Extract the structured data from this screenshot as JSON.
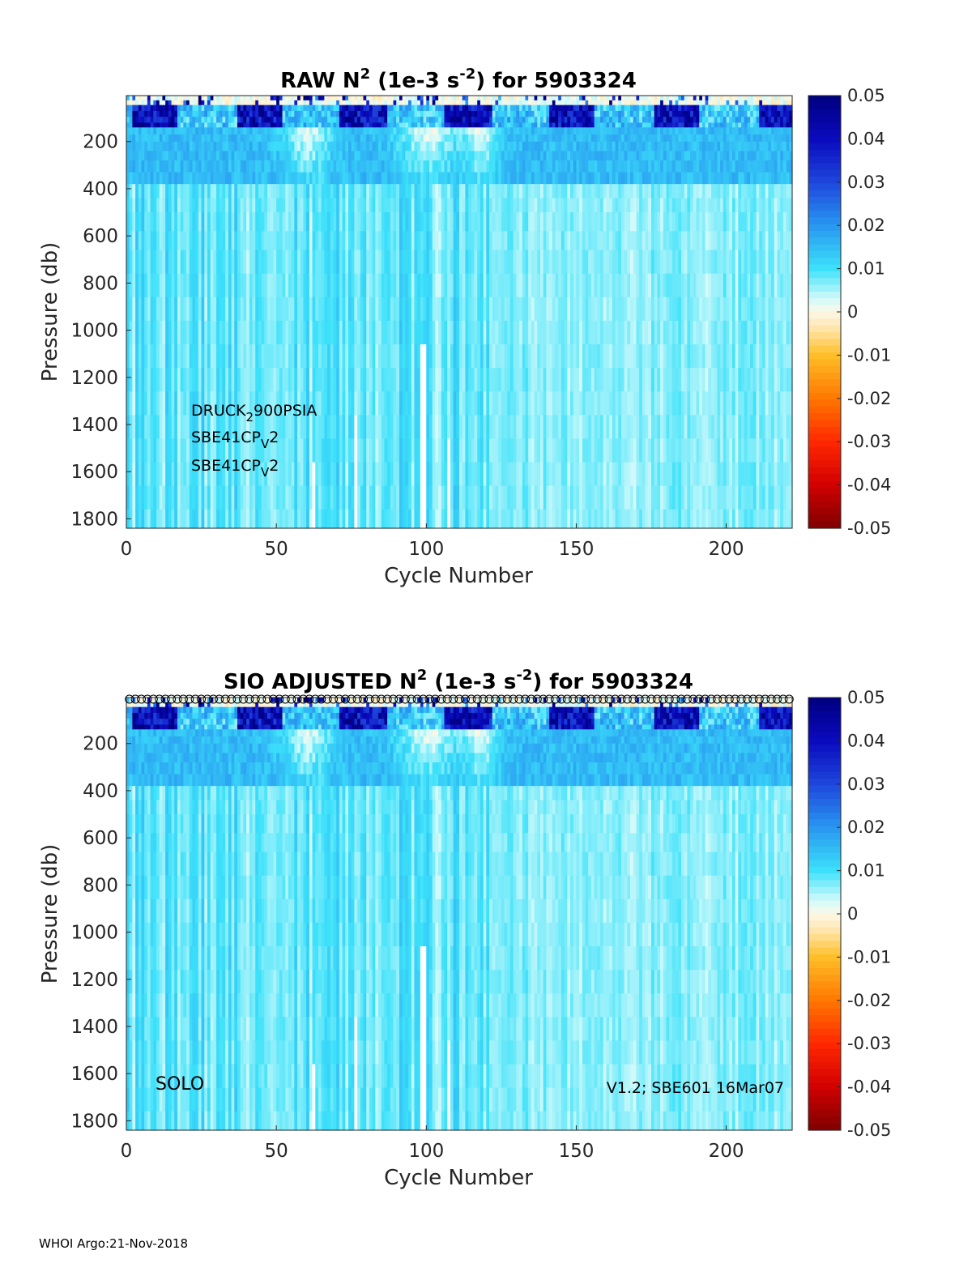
{
  "footer": "WHOI Argo:21-Nov-2018",
  "chart_data": [
    {
      "type": "heatmap",
      "title": {
        "pre": "RAW N",
        "sup1": "2",
        "mid": " (1e-3 s",
        "sup2": "-2",
        "post": ") for 5903324"
      },
      "xlabel": "Cycle Number",
      "ylabel": "Pressure (db)",
      "xlim": [
        0,
        222
      ],
      "ylim": [
        1840,
        5
      ],
      "xticks": [
        "0",
        "50",
        "100",
        "150",
        "200"
      ],
      "yticks": [
        "200",
        "400",
        "600",
        "800",
        "1000",
        "1200",
        "1400",
        "1600",
        "1800"
      ],
      "colorbar": {
        "range": [
          -0.05,
          0.05
        ],
        "ticks": [
          "0.05",
          "0.04",
          "0.03",
          "0.02",
          "0.01",
          "0",
          "-0.01",
          "-0.02",
          "-0.03",
          "-0.04",
          "-0.05"
        ]
      },
      "annotations": [
        {
          "a": "DRUCK",
          "sub": "2",
          "b": "900PSIA"
        },
        {
          "a": "SBE41CP",
          "sub": "V",
          "b": "2"
        },
        {
          "a": "SBE41CP",
          "sub": "V",
          "b": "2"
        }
      ],
      "gaps": [
        {
          "cycle": 62,
          "from_db": 1480
        },
        {
          "cycle": 76,
          "from_db": 1300
        },
        {
          "cycle": 98,
          "from_db": 1050
        },
        {
          "cycle": 99,
          "from_db": 1050
        },
        {
          "cycle": 107,
          "from_db": 1420
        }
      ],
      "approx_values": {
        "surface_layer_0_100db": "-0.01 to 0.05",
        "upper_200_600db": "0.005 to 0.015",
        "deep_600_1840db": "0.002 to 0.012"
      },
      "marker_row": false
    },
    {
      "type": "heatmap",
      "title": {
        "pre": "SIO  ADJUSTED N",
        "sup1": "2",
        "mid": " (1e-3 s",
        "sup2": "-2",
        "post": ") for 5903324"
      },
      "xlabel": "Cycle Number",
      "ylabel": "Pressure (db)",
      "xlim": [
        0,
        222
      ],
      "ylim": [
        1840,
        5
      ],
      "xticks": [
        "0",
        "50",
        "100",
        "150",
        "200"
      ],
      "yticks": [
        "200",
        "400",
        "600",
        "800",
        "1000",
        "1200",
        "1400",
        "1600",
        "1800"
      ],
      "colorbar": {
        "range": [
          -0.05,
          0.05
        ],
        "ticks": [
          "0.05",
          "0.04",
          "0.03",
          "0.02",
          "0.01",
          "0",
          "-0.01",
          "-0.02",
          "-0.03",
          "-0.04",
          "-0.05"
        ]
      },
      "annotations": [],
      "left_note": "SOLO",
      "right_note": "V1.2; SBE601 16Mar07",
      "gaps": [
        {
          "cycle": 62,
          "from_db": 1480
        },
        {
          "cycle": 76,
          "from_db": 1300
        },
        {
          "cycle": 98,
          "from_db": 1050
        },
        {
          "cycle": 99,
          "from_db": 1050
        },
        {
          "cycle": 107,
          "from_db": 1420
        }
      ],
      "approx_values": {
        "surface_layer_0_100db": "-0.01 to 0.05",
        "upper_200_600db": "0.005 to 0.015",
        "deep_600_1840db": "0.002 to 0.012"
      },
      "marker_row": true
    }
  ]
}
